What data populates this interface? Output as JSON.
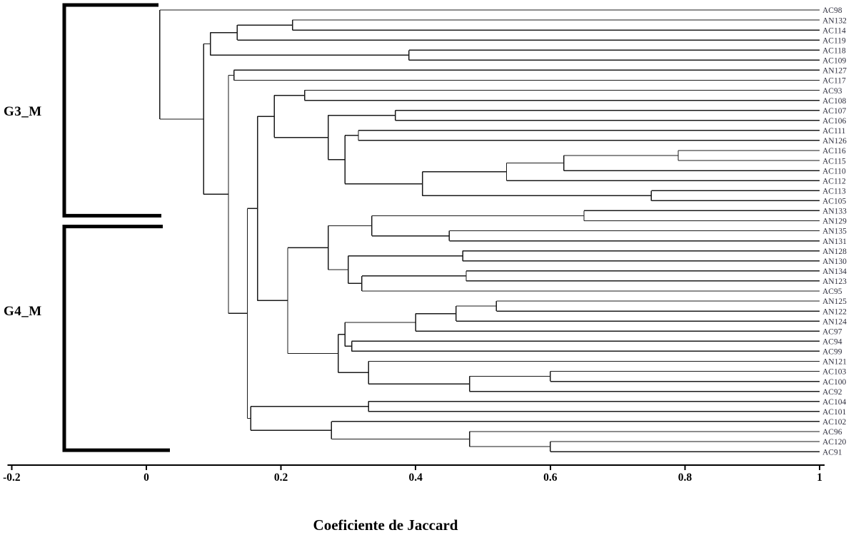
{
  "chart_data": {
    "type": "dendrogram",
    "title": "Coeficiente de Jaccard",
    "xlabel": "Coeficiente de Jaccard",
    "orientation": "horizontal",
    "axis": {
      "min": -0.2,
      "max": 1.0,
      "ticks": [
        -0.2,
        0,
        0.2,
        0.4,
        0.6,
        0.8,
        1
      ],
      "tick_labels": [
        "-0.2",
        "0",
        "0.2",
        "0.4",
        "0.6",
        "0.8",
        "1"
      ]
    },
    "leaves": [
      "AC98",
      "AN132",
      "AC114",
      "AC119",
      "AC118",
      "AC109",
      "AN127",
      "AC117",
      "AC93",
      "AC108",
      "AC107",
      "AC106",
      "AC111",
      "AN126",
      "AC116",
      "AC115",
      "AC110",
      "AC112",
      "AC113",
      "AC105",
      "AN133",
      "AN129",
      "AN135",
      "AN131",
      "AN128",
      "AN130",
      "AN134",
      "AN123",
      "AC95",
      "AN125",
      "AN122",
      "AN124",
      "AC97",
      "AC94",
      "AC99",
      "AN121",
      "AC103",
      "AC100",
      "AC92",
      "AC104",
      "AC101",
      "AC102",
      "AC96",
      "AC120",
      "AC91"
    ],
    "tree": {
      "h": 0.02,
      "c": [
        "AC98",
        {
          "h": 0.085,
          "c": [
            {
              "h": 0.095,
              "c": [
                {
                  "h": 0.135,
                  "c": [
                    {
                      "h": 0.217,
                      "c": [
                        "AN132",
                        "AC114"
                      ]
                    },
                    "AC119"
                  ]
                },
                {
                  "h": 0.39,
                  "c": [
                    "AC118",
                    "AC109"
                  ]
                }
              ]
            },
            {
              "h": 0.122,
              "c": [
                {
                  "h": 0.13,
                  "c": [
                    "AN127",
                    "AC117"
                  ]
                },
                {
                  "h": 0.15,
                  "c": [
                    {
                      "h": 0.165,
                      "c": [
                        {
                          "h": 0.19,
                          "c": [
                            {
                              "h": 0.235,
                              "c": [
                                "AC93",
                                "AC108"
                              ]
                            },
                            {
                              "h": 0.27,
                              "c": [
                                {
                                  "h": 0.37,
                                  "c": [
                                    "AC107",
                                    "AC106"
                                  ]
                                },
                                {
                                  "h": 0.295,
                                  "c": [
                                    {
                                      "h": 0.315,
                                      "c": [
                                        "AC111",
                                        "AN126"
                                      ]
                                    },
                                    {
                                      "h": 0.41,
                                      "c": [
                                        {
                                          "h": 0.535,
                                          "c": [
                                            {
                                              "h": 0.62,
                                              "c": [
                                                {
                                                  "h": 0.79,
                                                  "c": [
                                                    "AC116",
                                                    "AC115"
                                                  ]
                                                },
                                                "AC110"
                                              ]
                                            },
                                            "AC112"
                                          ]
                                        },
                                        {
                                          "h": 0.75,
                                          "c": [
                                            "AC113",
                                            "AC105"
                                          ]
                                        }
                                      ]
                                    }
                                  ]
                                }
                              ]
                            }
                          ]
                        },
                        {
                          "h": 0.21,
                          "c": [
                            {
                              "h": 0.27,
                              "c": [
                                {
                                  "h": 0.335,
                                  "c": [
                                    {
                                      "h": 0.65,
                                      "c": [
                                        "AN133",
                                        "AN129"
                                      ]
                                    },
                                    {
                                      "h": 0.45,
                                      "c": [
                                        "AN135",
                                        "AN131"
                                      ]
                                    }
                                  ]
                                },
                                {
                                  "h": 0.3,
                                  "c": [
                                    {
                                      "h": 0.47,
                                      "c": [
                                        "AN128",
                                        "AN130"
                                      ]
                                    },
                                    {
                                      "h": 0.32,
                                      "c": [
                                        {
                                          "h": 0.475,
                                          "c": [
                                            "AN134",
                                            "AN123"
                                          ]
                                        },
                                        "AC95"
                                      ]
                                    }
                                  ]
                                }
                              ]
                            },
                            {
                              "h": 0.285,
                              "c": [
                                {
                                  "h": 0.295,
                                  "c": [
                                    {
                                      "h": 0.4,
                                      "c": [
                                        {
                                          "h": 0.46,
                                          "c": [
                                            {
                                              "h": 0.52,
                                              "c": [
                                                "AN125",
                                                "AN122"
                                              ]
                                            },
                                            "AN124"
                                          ]
                                        },
                                        "AC97"
                                      ]
                                    },
                                    {
                                      "h": 0.305,
                                      "c": [
                                        "AC94",
                                        "AC99"
                                      ]
                                    }
                                  ]
                                },
                                {
                                  "h": 0.33,
                                  "c": [
                                    "AN121",
                                    {
                                      "h": 0.48,
                                      "c": [
                                        {
                                          "h": 0.6,
                                          "c": [
                                            "AC103",
                                            "AC100"
                                          ]
                                        },
                                        "AC92"
                                      ]
                                    }
                                  ]
                                }
                              ]
                            }
                          ]
                        }
                      ]
                    },
                    {
                      "h": 0.155,
                      "c": [
                        {
                          "h": 0.33,
                          "c": [
                            "AC104",
                            "AC101"
                          ]
                        },
                        {
                          "h": 0.275,
                          "c": [
                            "AC102",
                            {
                              "h": 0.48,
                              "c": [
                                "AC96",
                                {
                                  "h": 0.6,
                                  "c": [
                                    "AC120",
                                    "AC91"
                                  ]
                                }
                              ]
                            }
                          ]
                        }
                      ]
                    }
                  ]
                }
              ]
            }
          ]
        }
      ]
    },
    "groups": [
      {
        "label": "G3_M",
        "from_leaf": 0,
        "to_leaf": 20
      },
      {
        "label": "G4_M",
        "from_leaf": 21,
        "to_leaf": 44
      }
    ],
    "legend": "none",
    "grid": false
  },
  "colors": {
    "line": "#1a1a1a",
    "leaf_label": "#30303f",
    "axis": "#000000",
    "bracket": "#000000",
    "background": "#ffffff"
  }
}
